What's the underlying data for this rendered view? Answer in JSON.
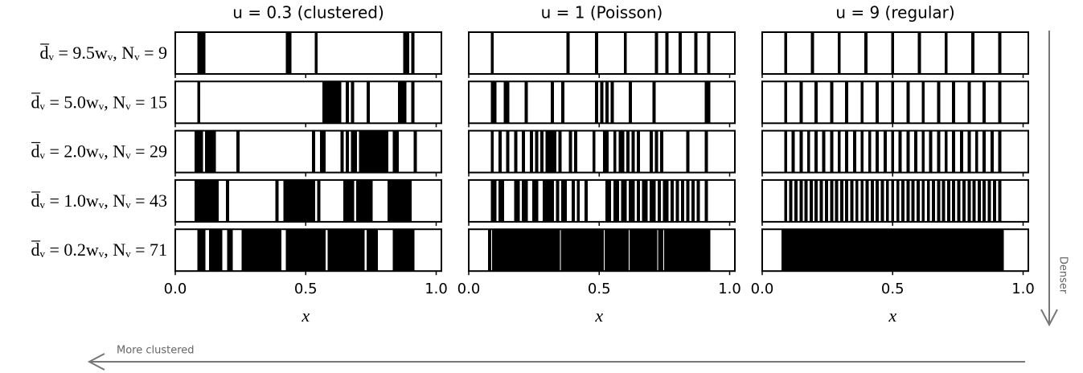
{
  "chart_data": [
    {
      "type": "barcode",
      "title": "u = 0.3 (clustered)",
      "ylabel": "d̅ᵥ = 9.5wᵥ, Nᵥ = 9",
      "color": "#000000",
      "line_width": 0.012,
      "xlim": [
        0,
        1.02
      ],
      "xticks": [
        0,
        0.5,
        1
      ],
      "x": [
        0.09,
        0.1,
        0.11,
        0.43,
        0.44,
        0.54,
        0.88,
        0.89,
        0.91
      ]
    },
    {
      "type": "barcode",
      "title": "u = 1 (Poisson)",
      "color": "#000000",
      "line_width": 0.012,
      "xlim": [
        0,
        1.02
      ],
      "xticks": [
        0,
        0.5,
        1
      ],
      "x": [
        0.09,
        0.38,
        0.49,
        0.6,
        0.72,
        0.76,
        0.81,
        0.87,
        0.92
      ]
    },
    {
      "type": "barcode",
      "title": "u = 9 (regular)",
      "color": "#000000",
      "line_width": 0.012,
      "xlim": [
        0,
        1.02
      ],
      "xticks": [
        0,
        0.5,
        1
      ],
      "x": [
        0.09,
        0.1925,
        0.295,
        0.3975,
        0.5,
        0.6025,
        0.705,
        0.8075,
        0.91
      ]
    },
    {
      "type": "barcode",
      "ylabel": "d̅ᵥ = 5.0wᵥ, Nᵥ = 15",
      "color": "#000000",
      "line_width": 0.012,
      "xlim": [
        0,
        1.02
      ],
      "xticks": [
        0,
        0.5,
        1
      ],
      "x": [
        0.09,
        0.57,
        0.58,
        0.59,
        0.6,
        0.61,
        0.62,
        0.63,
        0.66,
        0.68,
        0.74,
        0.86,
        0.87,
        0.88,
        0.91
      ]
    },
    {
      "type": "barcode",
      "color": "#000000",
      "line_width": 0.012,
      "xlim": [
        0,
        1.02
      ],
      "xticks": [
        0,
        0.5,
        1
      ],
      "x": [
        0.09,
        0.1,
        0.14,
        0.15,
        0.22,
        0.32,
        0.36,
        0.49,
        0.51,
        0.53,
        0.55,
        0.62,
        0.71,
        0.91,
        0.92
      ]
    },
    {
      "type": "barcode",
      "color": "#000000",
      "line_width": 0.012,
      "xlim": [
        0,
        1.02
      ],
      "xticks": [
        0,
        0.5,
        1
      ],
      "x": [
        0.09,
        0.149,
        0.207,
        0.266,
        0.324,
        0.383,
        0.441,
        0.5,
        0.559,
        0.617,
        0.676,
        0.734,
        0.793,
        0.851,
        0.91
      ]
    },
    {
      "type": "barcode",
      "ylabel": "d̅ᵥ = 2.0wᵥ, Nᵥ = 29",
      "color": "#000000",
      "line_width": 0.012,
      "xlim": [
        0,
        1.02
      ],
      "xticks": [
        0,
        0.5,
        1
      ],
      "x": [
        0.08,
        0.09,
        0.1,
        0.12,
        0.13,
        0.14,
        0.15,
        0.24,
        0.53,
        0.56,
        0.57,
        0.64,
        0.66,
        0.68,
        0.69,
        0.71,
        0.72,
        0.73,
        0.74,
        0.75,
        0.76,
        0.77,
        0.78,
        0.79,
        0.8,
        0.81,
        0.84,
        0.85,
        0.92
      ]
    },
    {
      "type": "barcode",
      "color": "#000000",
      "line_width": 0.012,
      "xlim": [
        0,
        1.02
      ],
      "xticks": [
        0,
        0.5,
        1
      ],
      "x": [
        0.09,
        0.12,
        0.15,
        0.18,
        0.21,
        0.24,
        0.26,
        0.28,
        0.3,
        0.31,
        0.32,
        0.33,
        0.35,
        0.39,
        0.41,
        0.48,
        0.52,
        0.53,
        0.56,
        0.58,
        0.59,
        0.61,
        0.63,
        0.65,
        0.7,
        0.72,
        0.74,
        0.84,
        0.91
      ]
    },
    {
      "type": "barcode",
      "color": "#000000",
      "line_width": 0.012,
      "xlim": [
        0,
        1.02
      ],
      "xticks": [
        0,
        0.5,
        1
      ],
      "x": [
        0.09,
        0.119,
        0.149,
        0.178,
        0.207,
        0.236,
        0.266,
        0.295,
        0.324,
        0.354,
        0.383,
        0.412,
        0.441,
        0.471,
        0.5,
        0.529,
        0.559,
        0.588,
        0.617,
        0.646,
        0.676,
        0.705,
        0.734,
        0.764,
        0.793,
        0.822,
        0.851,
        0.881,
        0.91
      ]
    },
    {
      "type": "barcode",
      "ylabel": "d̅ᵥ = 1.0wᵥ, Nᵥ = 43",
      "color": "#000000",
      "line_width": 0.012,
      "xlim": [
        0,
        1.02
      ],
      "xticks": [
        0,
        0.5,
        1
      ],
      "x": [
        0.08,
        0.09,
        0.1,
        0.11,
        0.12,
        0.13,
        0.14,
        0.15,
        0.16,
        0.2,
        0.39,
        0.42,
        0.43,
        0.44,
        0.45,
        0.46,
        0.47,
        0.48,
        0.49,
        0.5,
        0.51,
        0.52,
        0.53,
        0.55,
        0.65,
        0.66,
        0.67,
        0.68,
        0.7,
        0.71,
        0.72,
        0.73,
        0.74,
        0.75,
        0.82,
        0.83,
        0.84,
        0.85,
        0.86,
        0.87,
        0.88,
        0.89,
        0.9
      ]
    },
    {
      "type": "barcode",
      "color": "#000000",
      "line_width": 0.012,
      "xlim": [
        0,
        1.02
      ],
      "xticks": [
        0,
        0.5,
        1
      ],
      "x": [
        0.09,
        0.1,
        0.12,
        0.13,
        0.18,
        0.19,
        0.21,
        0.22,
        0.25,
        0.26,
        0.29,
        0.3,
        0.31,
        0.32,
        0.34,
        0.36,
        0.37,
        0.4,
        0.42,
        0.45,
        0.53,
        0.54,
        0.56,
        0.57,
        0.59,
        0.6,
        0.62,
        0.63,
        0.65,
        0.67,
        0.68,
        0.7,
        0.71,
        0.73,
        0.75,
        0.76,
        0.78,
        0.8,
        0.82,
        0.84,
        0.86,
        0.88,
        0.91
      ]
    },
    {
      "type": "barcode",
      "color": "#000000",
      "line_width": 0.012,
      "xlim": [
        0,
        1.02
      ],
      "xticks": [
        0,
        0.5,
        1
      ],
      "x": [
        0.09,
        0.11,
        0.129,
        0.149,
        0.168,
        0.188,
        0.207,
        0.227,
        0.246,
        0.266,
        0.285,
        0.305,
        0.324,
        0.344,
        0.363,
        0.383,
        0.402,
        0.422,
        0.441,
        0.461,
        0.48,
        0.5,
        0.52,
        0.539,
        0.559,
        0.578,
        0.598,
        0.617,
        0.637,
        0.656,
        0.676,
        0.695,
        0.715,
        0.734,
        0.754,
        0.773,
        0.793,
        0.812,
        0.832,
        0.851,
        0.871,
        0.89,
        0.91
      ]
    },
    {
      "type": "barcode",
      "ylabel": "d̅ᵥ = 0.2wᵥ, Nᵥ = 71",
      "xlabel": "x",
      "color": "#000000",
      "line_width": 0.012,
      "xlim": [
        0,
        1.02
      ],
      "xticks": [
        {
          "value": 0,
          "label": "0.0"
        },
        {
          "value": 0.5,
          "label": "0.5"
        },
        {
          "value": 1,
          "label": "1.0"
        }
      ],
      "x": [
        0.09,
        0.1,
        0.11,
        0.135,
        0.145,
        0.155,
        0.165,
        0.175,
        0.205,
        0.215,
        0.26,
        0.265,
        0.27,
        0.28,
        0.29,
        0.3,
        0.31,
        0.32,
        0.33,
        0.335,
        0.34,
        0.35,
        0.36,
        0.37,
        0.38,
        0.39,
        0.4,
        0.43,
        0.44,
        0.45,
        0.455,
        0.46,
        0.47,
        0.48,
        0.49,
        0.5,
        0.51,
        0.52,
        0.53,
        0.54,
        0.55,
        0.56,
        0.57,
        0.59,
        0.6,
        0.61,
        0.615,
        0.62,
        0.63,
        0.64,
        0.65,
        0.66,
        0.67,
        0.68,
        0.69,
        0.7,
        0.71,
        0.72,
        0.74,
        0.75,
        0.76,
        0.77,
        0.84,
        0.85,
        0.86,
        0.865,
        0.87,
        0.88,
        0.89,
        0.9,
        0.91
      ]
    },
    {
      "type": "barcode",
      "xlabel": "x",
      "color": "#000000",
      "line_width": 0.012,
      "xlim": [
        0,
        1.02
      ],
      "xticks": [
        {
          "value": 0,
          "label": "0.0"
        },
        {
          "value": 0.5,
          "label": "0.5"
        },
        {
          "value": 1,
          "label": "1.0"
        }
      ],
      "x": [
        0.08,
        0.096,
        0.107,
        0.116,
        0.128,
        0.14,
        0.152,
        0.164,
        0.176,
        0.188,
        0.2,
        0.212,
        0.224,
        0.236,
        0.248,
        0.26,
        0.272,
        0.284,
        0.296,
        0.308,
        0.32,
        0.332,
        0.344,
        0.359,
        0.368,
        0.38,
        0.392,
        0.404,
        0.416,
        0.428,
        0.44,
        0.452,
        0.464,
        0.476,
        0.488,
        0.5,
        0.512,
        0.527,
        0.536,
        0.548,
        0.56,
        0.572,
        0.584,
        0.596,
        0.608,
        0.623,
        0.632,
        0.644,
        0.656,
        0.668,
        0.68,
        0.692,
        0.704,
        0.716,
        0.731,
        0.74,
        0.755,
        0.764,
        0.776,
        0.788,
        0.8,
        0.812,
        0.824,
        0.836,
        0.848,
        0.86,
        0.872,
        0.884,
        0.896,
        0.908,
        0.92
      ]
    },
    {
      "type": "barcode",
      "xlabel": "x",
      "color": "#000000",
      "line_width": 0.012,
      "xlim": [
        0,
        1.02
      ],
      "xticks": [
        {
          "value": 0,
          "label": "0.0"
        },
        {
          "value": 0.5,
          "label": "0.5"
        },
        {
          "value": 1,
          "label": "1.0"
        }
      ],
      "x": [
        0.08,
        0.092,
        0.104,
        0.116,
        0.128,
        0.14,
        0.152,
        0.164,
        0.176,
        0.188,
        0.2,
        0.212,
        0.224,
        0.236,
        0.248,
        0.26,
        0.272,
        0.284,
        0.296,
        0.308,
        0.32,
        0.332,
        0.344,
        0.356,
        0.368,
        0.38,
        0.392,
        0.404,
        0.416,
        0.428,
        0.44,
        0.452,
        0.464,
        0.476,
        0.488,
        0.5,
        0.512,
        0.524,
        0.536,
        0.548,
        0.56,
        0.572,
        0.584,
        0.596,
        0.608,
        0.62,
        0.632,
        0.644,
        0.656,
        0.668,
        0.68,
        0.692,
        0.704,
        0.716,
        0.728,
        0.74,
        0.752,
        0.764,
        0.776,
        0.788,
        0.8,
        0.812,
        0.824,
        0.836,
        0.848,
        0.86,
        0.872,
        0.884,
        0.896,
        0.908,
        0.92
      ]
    }
  ],
  "annotations": {
    "down": "Denser",
    "left": "More clustered"
  }
}
